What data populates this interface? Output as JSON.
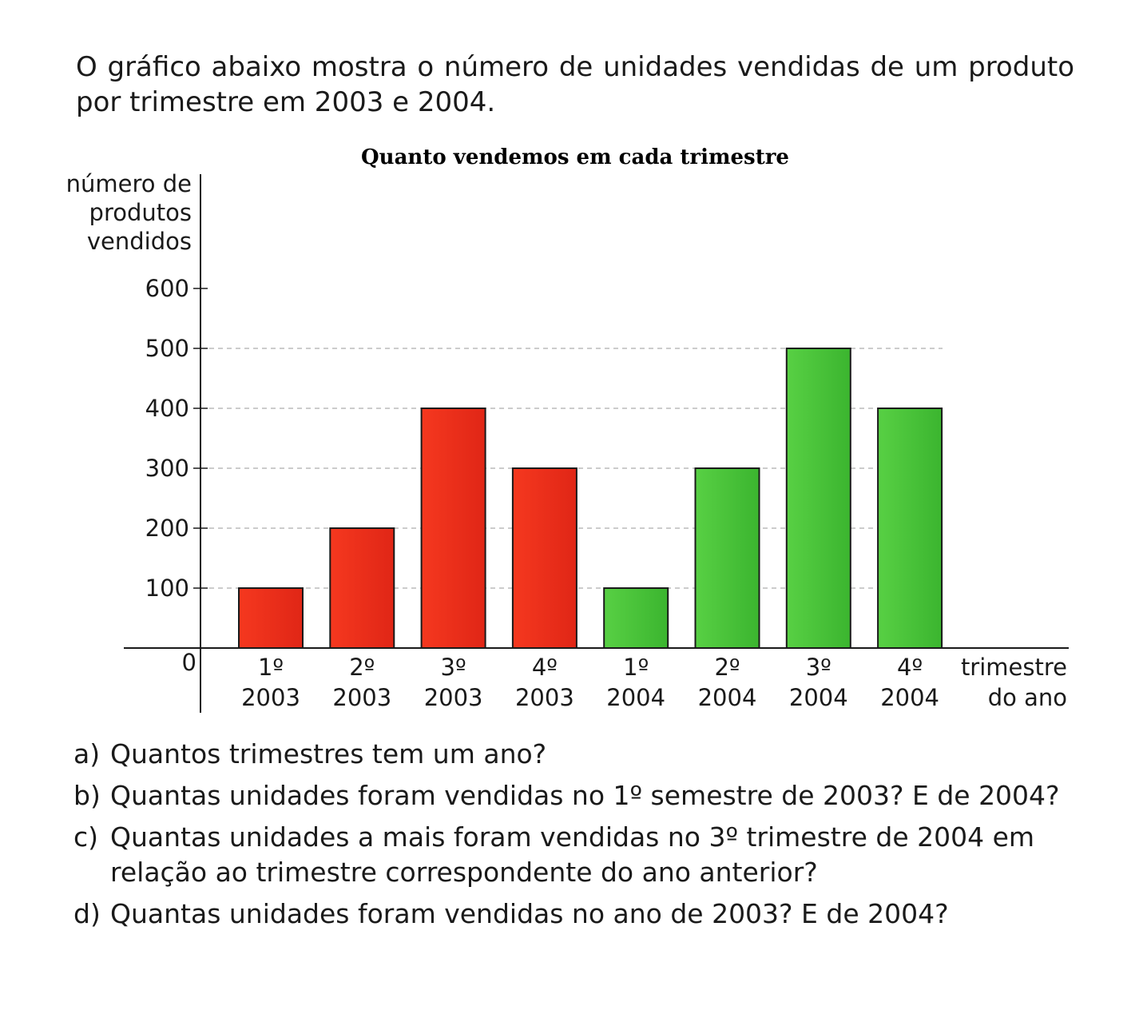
{
  "intro": "O gráfico abaixo mostra o número de unidades vendidas de um produto por trimestre em 2003 e 2004.",
  "chart_data": {
    "type": "bar",
    "title": "Quanto vendemos em cada trimestre",
    "ylabel": [
      "número de",
      "produtos",
      "vendidos"
    ],
    "xlabel": [
      "trimestre",
      "do ano"
    ],
    "categories": [
      [
        "1º",
        "2003"
      ],
      [
        "2º",
        "2003"
      ],
      [
        "3º",
        "2003"
      ],
      [
        "4º",
        "2003"
      ],
      [
        "1º",
        "2004"
      ],
      [
        "2º",
        "2004"
      ],
      [
        "3º",
        "2004"
      ],
      [
        "4º",
        "2004"
      ]
    ],
    "values": [
      100,
      200,
      400,
      300,
      100,
      300,
      500,
      400
    ],
    "colors": [
      "#ee2a1c",
      "#ee2a1c",
      "#ee2a1c",
      "#ee2a1c",
      "#4ec63a",
      "#4ec63a",
      "#4ec63a",
      "#4ec63a"
    ],
    "yticks": [
      0,
      100,
      200,
      300,
      400,
      500,
      600
    ],
    "ylim": [
      0,
      600
    ],
    "grid": "dashed"
  },
  "questions": [
    {
      "letter": "a)",
      "text": "Quantos trimestres tem um ano?"
    },
    {
      "letter": "b)",
      "text": "Quantas unidades foram vendidas no 1º semestre de 2003? E de 2004?"
    },
    {
      "letter": "c)",
      "text": "Quantas unidades a mais foram vendidas no 3º trimestre de 2004 em relação ao trimestre correspondente do ano anterior?"
    },
    {
      "letter": "d)",
      "text": "Quantas unidades foram vendidas no ano de 2003? E de 2004?"
    }
  ]
}
